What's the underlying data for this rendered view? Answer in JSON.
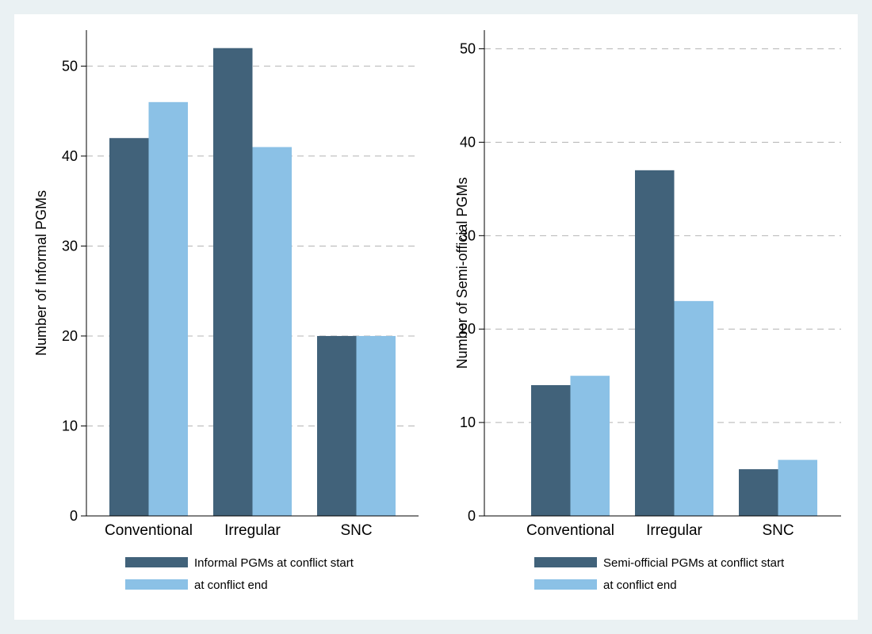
{
  "colors": {
    "start": "#41627a",
    "end": "#8bc1e6",
    "grid": "#b4b4b4",
    "axis": "#000000"
  },
  "chart_data": [
    {
      "type": "bar",
      "categories": [
        "Conventional",
        "Irregular",
        "SNC"
      ],
      "series": [
        {
          "name": "Informal PGMs at conflict start",
          "values": [
            42,
            52,
            20
          ]
        },
        {
          "name": "at conflict end",
          "values": [
            46,
            41,
            20
          ]
        }
      ],
      "ylabel": "Number of Informal PGMs",
      "ylim": [
        0,
        54
      ],
      "yticks": [
        0,
        10,
        20,
        30,
        40,
        50
      ],
      "grid": true,
      "legend_position": "bottom"
    },
    {
      "type": "bar",
      "categories": [
        "Conventional",
        "Irregular",
        "SNC"
      ],
      "series": [
        {
          "name": "Semi-official PGMs at conflict start",
          "values": [
            14,
            37,
            5
          ]
        },
        {
          "name": "at conflict end",
          "values": [
            15,
            23,
            6
          ]
        }
      ],
      "ylabel": "Number of Semi-official PGMs",
      "ylim": [
        0,
        52
      ],
      "yticks": [
        0,
        10,
        20,
        30,
        40,
        50
      ],
      "grid": true,
      "legend_position": "bottom"
    }
  ]
}
